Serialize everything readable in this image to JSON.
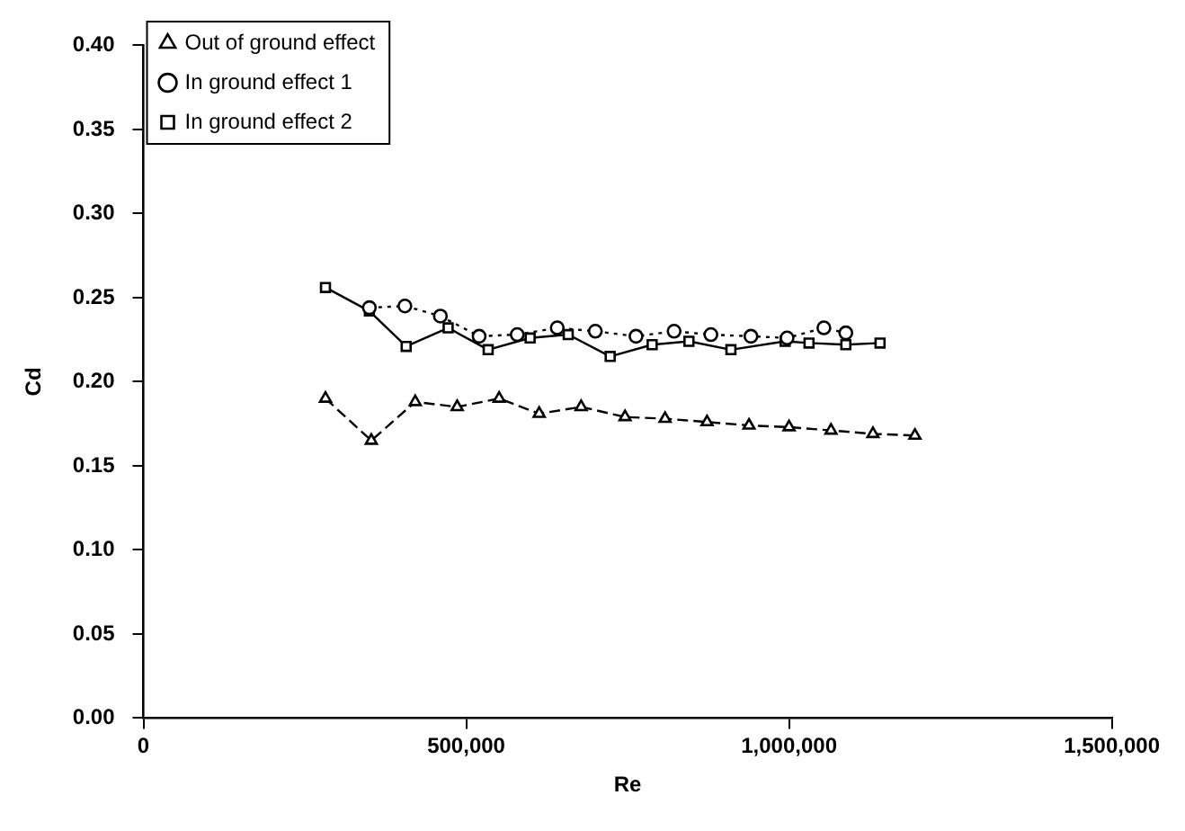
{
  "chart_data": {
    "type": "line",
    "xlabel": "Re",
    "ylabel": "Cd",
    "legend": "top left",
    "grid": false,
    "xlim": [
      0,
      1500000
    ],
    "xticks": [
      0,
      {
        "value": 500000,
        "label": "500,000"
      },
      {
        "value": 1000000,
        "label": "1,000,000"
      },
      {
        "value": 1500000,
        "label": "1,500,000"
      }
    ],
    "ylim": [
      0,
      0.4
    ],
    "yticks": [
      {
        "value": 0,
        "label": "0.00"
      },
      {
        "value": 0.05,
        "label": "0.05"
      },
      {
        "value": 0.1,
        "label": "0.10"
      },
      {
        "value": 0.15,
        "label": "0.15"
      },
      {
        "value": 0.2,
        "label": "0.20"
      },
      {
        "value": 0.25,
        "label": "0.25"
      },
      {
        "value": 0.3,
        "label": "0.30"
      },
      {
        "value": 0.35,
        "label": "0.35"
      },
      {
        "value": 0.4,
        "label": "0.40"
      }
    ],
    "series": [
      {
        "name": "Out of ground effect",
        "color": "#000000",
        "marker": "triangle",
        "line_style": "dashed",
        "x": [
          282000,
          353000,
          421000,
          486000,
          551000,
          613000,
          678000,
          746000,
          808000,
          873000,
          938000,
          1000000,
          1065000,
          1130000,
          1195000
        ],
        "values": [
          0.19,
          0.165,
          0.188,
          0.185,
          0.19,
          0.181,
          0.185,
          0.179,
          0.178,
          0.176,
          0.174,
          0.173,
          0.171,
          0.169,
          0.168
        ]
      },
      {
        "name": "In ground effect 1",
        "color": "#000000",
        "marker": "circle",
        "line_style": "dotted",
        "x": [
          350000,
          405000,
          460000,
          520000,
          579000,
          641000,
          700000,
          763000,
          822000,
          879000,
          941000,
          997000,
          1054000,
          1088000
        ],
        "values": [
          0.244,
          0.245,
          0.239,
          0.227,
          0.228,
          0.232,
          0.23,
          0.227,
          0.23,
          0.228,
          0.227,
          0.226,
          0.232,
          0.229
        ]
      },
      {
        "name": "In ground effect 2",
        "color": "#000000",
        "marker": "square",
        "line_style": "solid",
        "x": [
          282000,
          350000,
          407000,
          472000,
          534000,
          599000,
          658000,
          723000,
          788000,
          845000,
          910000,
          994000,
          1031000,
          1088000,
          1141000
        ],
        "values": [
          0.256,
          0.242,
          0.221,
          0.232,
          0.219,
          0.226,
          0.228,
          0.215,
          0.222,
          0.224,
          0.219,
          0.224,
          0.223,
          0.222,
          0.223
        ]
      }
    ]
  }
}
